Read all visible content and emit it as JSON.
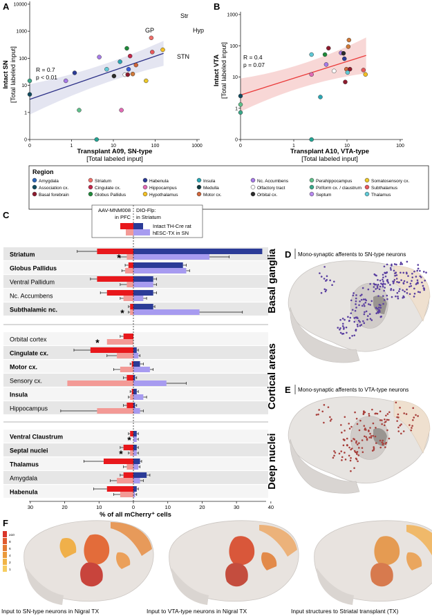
{
  "panels": {
    "A": "A",
    "B": "B",
    "C": "C",
    "D": "D",
    "E": "E",
    "F": "F"
  },
  "colors": {
    "sn_intact": "#2b3b97",
    "sn_transplant": "#a79bf0",
    "vta_intact": "#e8181c",
    "vta_transplant": "#f39a96",
    "ci_a": "#dfe1ef",
    "ci_b": "#f7d0cf",
    "line_a": "#2b2f86",
    "line_b": "#ea3a3a",
    "brain": "#e7e4e1",
    "dot_d": "#5a3fa0",
    "dot_e": "#a8403c"
  },
  "chart_data": [
    {
      "id": "A",
      "type": "scatter",
      "xlabel": "Transplant A09, SN-type",
      "xlabel2": "[Total labeled input]",
      "ylabel": "Intact SN",
      "ylabel2": "[Total labeled input]",
      "scale": "log",
      "xticks": [
        "0",
        "1",
        "10",
        "100",
        "1000"
      ],
      "yticks": [
        "0",
        "1",
        "10",
        "100",
        "1000",
        "10000"
      ],
      "stats": [
        "R = 0.7",
        "p < 0.01"
      ],
      "annotations": [
        "Str",
        "GP",
        "Hyp",
        "STN"
      ],
      "regression": {
        "x": [
          0,
          1000
        ],
        "y": [
          6,
          660
        ]
      },
      "points": [
        {
          "x": 0,
          "y": 10,
          "color": "#0f4a5e"
        },
        {
          "x": 0,
          "y": 40,
          "color": "#3aa88a"
        },
        {
          "x": 1.2,
          "y": 40,
          "color": "#a77be8"
        },
        {
          "x": 2.2,
          "y": 90,
          "color": "#2b3b97"
        },
        {
          "x": 3.0,
          "y": 2,
          "color": "#5fbf8a"
        },
        {
          "x": 10,
          "y": 0,
          "color": "#22a594"
        },
        {
          "x": 12,
          "y": 450,
          "color": "#a77be8"
        },
        {
          "x": 20,
          "y": 130,
          "color": "#5fc9d6"
        },
        {
          "x": 33,
          "y": 65,
          "color": "#2b2b2b"
        },
        {
          "x": 50,
          "y": 280,
          "color": "#2aa6b3"
        },
        {
          "x": 55,
          "y": 2,
          "color": "#e26bb5"
        },
        {
          "x": 70,
          "y": 75,
          "color": "#ffffff"
        },
        {
          "x": 80,
          "y": 1100,
          "color": "#1f8a3a"
        },
        {
          "x": 85,
          "y": 75,
          "color": "#8e1a2d"
        },
        {
          "x": 90,
          "y": 130,
          "color": "#3b5bd8"
        },
        {
          "x": 100,
          "y": 500,
          "color": "#c3284a"
        },
        {
          "x": 120,
          "y": 80,
          "color": "#d07a39"
        },
        {
          "x": 150,
          "y": 200,
          "color": "#d0653a"
        },
        {
          "x": 300,
          "y": 40,
          "color": "#ecc82a"
        },
        {
          "x": 430,
          "y": 3200,
          "color": "#f0706a"
        },
        {
          "x": 460,
          "y": 750,
          "color": "#e8585c"
        },
        {
          "x": 950,
          "y": 950,
          "color": "#f4c023"
        }
      ]
    },
    {
      "id": "B",
      "type": "scatter",
      "xlabel": "Transplant A10, VTA-type",
      "xlabel2": "[Total labeled input]",
      "ylabel": "Intact VTA",
      "ylabel2": "[Total labeled input]",
      "scale": "log",
      "xticks": [
        "0",
        "1",
        "10",
        "100"
      ],
      "yticks": [
        "0",
        "1",
        "10",
        "100",
        "1000"
      ],
      "stats": [
        "R = 0.4",
        "p = 0.07"
      ],
      "regression": {
        "x": [
          0,
          140
        ],
        "y": [
          6,
          230
        ]
      },
      "points": [
        {
          "x": 0,
          "y": 5.5,
          "color": "#0f4a5e"
        },
        {
          "x": 0,
          "y": 2.5,
          "color": "#5fbf8a"
        },
        {
          "x": 0,
          "y": 1.2,
          "color": "#3aa88a"
        },
        {
          "x": 6,
          "y": 0,
          "color": "#22a594"
        },
        {
          "x": 6,
          "y": 250,
          "color": "#5fc9d6"
        },
        {
          "x": 6,
          "y": 40,
          "color": "#e26bb5"
        },
        {
          "x": 10,
          "y": 5,
          "color": "#2aa6b3"
        },
        {
          "x": 13,
          "y": 250,
          "color": "#1f8a3a"
        },
        {
          "x": 14,
          "y": 100,
          "color": "#a77be8"
        },
        {
          "x": 16,
          "y": 450,
          "color": "#8e1a2d"
        },
        {
          "x": 22,
          "y": 55,
          "color": "#ffffff"
        },
        {
          "x": 33,
          "y": 290,
          "color": "#a77be8"
        },
        {
          "x": 38,
          "y": 280,
          "color": "#2b2b2b"
        },
        {
          "x": 40,
          "y": 170,
          "color": "#2b3b97"
        },
        {
          "x": 42,
          "y": 20,
          "color": "#8e1a2d"
        },
        {
          "x": 45,
          "y": 65,
          "color": "#d0653a"
        },
        {
          "x": 48,
          "y": 48,
          "color": "#5fc9d6"
        },
        {
          "x": 50,
          "y": 520,
          "color": "#d07a39"
        },
        {
          "x": 52,
          "y": 950,
          "color": "#d07a39"
        },
        {
          "x": 55,
          "y": 65,
          "color": "#8e1a2d"
        },
        {
          "x": 120,
          "y": 60,
          "color": "#e8585c"
        },
        {
          "x": 135,
          "y": 40,
          "color": "#f4c023"
        }
      ]
    },
    {
      "id": "C",
      "type": "bar",
      "orientation": "horizontal",
      "xlabel": "% of all mCherry⁺ cells",
      "xticks": [
        "30",
        "20",
        "10",
        "0",
        "10",
        "20",
        "30",
        "40"
      ],
      "left_header": [
        "AAV-MNM008",
        "in PFC"
      ],
      "right_header": [
        "DIO-Flp:",
        "in Striatum"
      ],
      "legend": [
        "Intact TH-Cre rat",
        "hESC-TX in SN"
      ],
      "groups": [
        "Basal ganglia",
        "Cortical areas",
        "Deep nuclei"
      ],
      "series": [
        {
          "name": "Intact TH-Cre rat",
          "side": "left",
          "color": "#e8181c"
        },
        {
          "name": "hESC-TX in SN",
          "side": "left",
          "color": "#f39a96"
        },
        {
          "name": "Intact TH-Cre rat",
          "side": "right",
          "color": "#2b3b97"
        },
        {
          "name": "hESC-TX in SN",
          "side": "right",
          "color": "#a79bf0"
        }
      ],
      "rows": [
        {
          "label": "Striatum",
          "bold": true,
          "group": 0,
          "vta_i": 11,
          "vta_t": 2,
          "sn_i": 39,
          "sn_t": 23,
          "vta_i_err": 6,
          "vta_t_err": 2,
          "sn_i_err": 0,
          "sn_t_err": 6,
          "star": "*"
        },
        {
          "label": "Globus Pallidus",
          "bold": true,
          "group": 0,
          "vta_i": 1.5,
          "vta_t": 2.5,
          "sn_i": 15,
          "sn_t": 16,
          "vta_i_err": 1,
          "vta_t_err": 1,
          "sn_i_err": 1,
          "sn_t_err": 1,
          "star": ""
        },
        {
          "label": "Ventral Pallidum",
          "bold": false,
          "group": 0,
          "vta_i": 11,
          "vta_t": 2,
          "sn_i": 6,
          "sn_t": 6,
          "vta_i_err": 2,
          "vta_t_err": 2,
          "sn_i_err": 1,
          "sn_t_err": 1,
          "star": ""
        },
        {
          "label": "Nc. Accumbens",
          "bold": false,
          "group": 0,
          "vta_i": 8,
          "vta_t": 3,
          "sn_i": 6,
          "sn_t": 3,
          "vta_i_err": 2,
          "vta_t_err": 1,
          "sn_i_err": 1,
          "sn_t_err": 1,
          "star": ""
        },
        {
          "label": "Subthalamic nc.",
          "bold": true,
          "group": 0,
          "vta_i": 1,
          "vta_t": 1,
          "sn_i": 6,
          "sn_t": 20,
          "vta_i_err": 0.5,
          "vta_t_err": 0.5,
          "sn_i_err": 0.5,
          "sn_t_err": 13,
          "star": "*"
        },
        {
          "label": "Orbital cortex",
          "bold": false,
          "group": 1,
          "vta_i": 3,
          "vta_t": 8,
          "sn_i": 0,
          "sn_t": 0,
          "vta_i_err": 1,
          "vta_t_err": 0,
          "sn_i_err": 0,
          "sn_t_err": 0,
          "star": "*"
        },
        {
          "label": "Cingulate cx.",
          "bold": true,
          "group": 1,
          "vta_i": 13,
          "vta_t": 5,
          "sn_i": 1,
          "sn_t": 1.5,
          "vta_i_err": 5,
          "vta_t_err": 3,
          "sn_i_err": 0.5,
          "sn_t_err": 0.5,
          "star": ""
        },
        {
          "label": "Motor cx.",
          "bold": true,
          "group": 1,
          "vta_i": 0.5,
          "vta_t": 4,
          "sn_i": 2,
          "sn_t": 5,
          "vta_i_err": 0.5,
          "vta_t_err": 2,
          "sn_i_err": 1,
          "sn_t_err": 1,
          "star": ""
        },
        {
          "label": "Sensory cx.",
          "bold": false,
          "group": 1,
          "vta_i": 2,
          "vta_t": 20,
          "sn_i": 0.5,
          "sn_t": 10,
          "vta_i_err": 1,
          "vta_t_err": 0,
          "sn_i_err": 0.5,
          "sn_t_err": 6,
          "star": ""
        },
        {
          "label": "Insula",
          "bold": true,
          "group": 1,
          "vta_i": 0.5,
          "vta_t": 1,
          "sn_i": 1,
          "sn_t": 3,
          "vta_i_err": 0.5,
          "vta_t_err": 0.5,
          "sn_i_err": 0.5,
          "sn_t_err": 1,
          "star": ""
        },
        {
          "label": "Hippocampus",
          "bold": false,
          "group": 1,
          "vta_i": 2,
          "vta_t": 11,
          "sn_i": 0.5,
          "sn_t": 2,
          "vta_i_err": 1,
          "vta_t_err": 11,
          "sn_i_err": 0.5,
          "sn_t_err": 1,
          "star": ""
        },
        {
          "label": "Ventral Claustrum",
          "bold": true,
          "group": 2,
          "vta_i": 1,
          "vta_t": 0,
          "sn_i": 1,
          "sn_t": 1,
          "vta_i_err": 0.5,
          "vta_t_err": 0,
          "sn_i_err": 0.5,
          "sn_t_err": 0.5,
          "star": "*"
        },
        {
          "label": "Septal nuclei",
          "bold": true,
          "group": 2,
          "vta_i": 3,
          "vta_t": 1,
          "sn_i": 1,
          "sn_t": 1,
          "vta_i_err": 1,
          "vta_t_err": 0.5,
          "sn_i_err": 0.5,
          "sn_t_err": 0.5,
          "star": "*"
        },
        {
          "label": "Thalamus",
          "bold": true,
          "group": 2,
          "vta_i": 9,
          "vta_t": 2,
          "sn_i": 2,
          "sn_t": 1.5,
          "vta_i_err": 6,
          "vta_t_err": 1,
          "sn_i_err": 0.5,
          "sn_t_err": 0.5,
          "star": ""
        },
        {
          "label": "Amygdala",
          "bold": false,
          "group": 2,
          "vta_i": 3,
          "vta_t": 5,
          "sn_i": 4,
          "sn_t": 2,
          "vta_i_err": 1,
          "vta_t_err": 2,
          "sn_i_err": 1,
          "sn_t_err": 1,
          "star": ""
        },
        {
          "label": "Habenula",
          "bold": true,
          "group": 2,
          "vta_i": 8,
          "vta_t": 4,
          "sn_i": 1,
          "sn_t": 0.5,
          "vta_i_err": 4,
          "vta_t_err": 2,
          "sn_i_err": 0.5,
          "sn_t_err": 0.5,
          "star": ""
        }
      ]
    }
  ],
  "region_legend": {
    "title": "Region",
    "items": [
      {
        "label": "Amygdala",
        "color": "#2b66b9"
      },
      {
        "label": "Striatum",
        "color": "#f0706a"
      },
      {
        "label": "Habenula",
        "color": "#2b3b97"
      },
      {
        "label": "Insula",
        "color": "#2aa6b3"
      },
      {
        "label": "Nc. Accumbens",
        "color": "#a77be8"
      },
      {
        "label": "Perahippocampus",
        "color": "#5fbf8a"
      },
      {
        "label": "Somatosensory cx.",
        "color": "#ecc82a"
      },
      {
        "label": "Association cx.",
        "color": "#0f4a5e"
      },
      {
        "label": "Cingulate cx.",
        "color": "#c3284a"
      },
      {
        "label": "Hippocampus",
        "color": "#e26bb5"
      },
      {
        "label": "Medulla",
        "color": "#10393f"
      },
      {
        "label": "Olfactory tract",
        "color": "#ffffff"
      },
      {
        "label": "Piriform cx. / claustrum",
        "color": "#3aa88a"
      },
      {
        "label": "Subthalamus",
        "color": "#e8585c"
      },
      {
        "label": "Basal forebrain",
        "color": "#8e1a2d"
      },
      {
        "label": "Globus Pallidus",
        "color": "#1f8a3a"
      },
      {
        "label": "Hypothalamus",
        "color": "#f4c023"
      },
      {
        "label": "Motor cx.",
        "color": "#d0653a"
      },
      {
        "label": "Orbital cx.",
        "color": "#2b2b2b"
      },
      {
        "label": "Septum",
        "color": "#b889f0"
      },
      {
        "label": "Thalamus",
        "color": "#5fc9d6"
      }
    ]
  },
  "panel_d_title": "Mono-synaptic afferents to SN-type neurons",
  "panel_e_title": "Mono-synaptic afferents to VTA-type neurons",
  "panel_f": {
    "scale_labels": [
      "≥10",
      "8",
      "6",
      "4",
      "2",
      "1"
    ],
    "scale_colors": [
      "#d9352a",
      "#e05a2e",
      "#e47a33",
      "#eb9a3a",
      "#f1b446",
      "#f6cd60"
    ],
    "captions": [
      "Input to SN-type neurons in Nigral TX",
      "Input to VTA-type neurons in Nigral TX",
      "Input structures to Striatal transplant (TX)"
    ]
  }
}
